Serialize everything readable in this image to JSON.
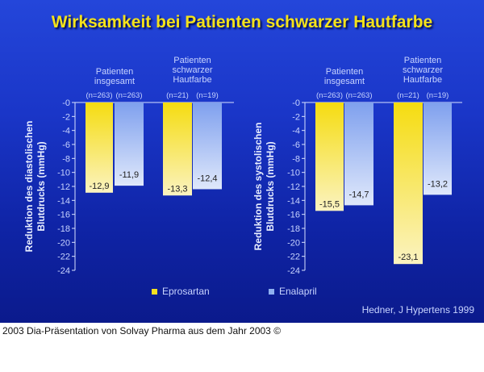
{
  "title": "Wirksamkeit bei Patienten schwarzer Hautfarbe",
  "source": "Hedner, J Hypertens 1999",
  "caption": "2003 Dia-Präsentation von Solvay Pharma aus dem Jahr 2003 ©",
  "colors": {
    "eprosartan": "#f5df20",
    "enalapril": "#8fb0f0",
    "axis": "#c8d4ff"
  },
  "chart_data": [
    {
      "type": "bar",
      "ylabel": "Reduktion des diastolischen Blutdrucks (mmHg)",
      "ylim": [
        -24,
        0
      ],
      "yticks": [
        "-0",
        "-2",
        "-4",
        "-6",
        "-8",
        "-10",
        "-12",
        "-14",
        "-16",
        "-18",
        "-20",
        "-22",
        "-24"
      ],
      "categories": [
        "Patienten insgesamt",
        "Patienten schwarzer Hautfarbe"
      ],
      "n_labels": [
        [
          "(n=263)",
          "(n=263)"
        ],
        [
          "(n=21)",
          "(n=19)"
        ]
      ],
      "series": [
        {
          "name": "Eprosartan",
          "values": [
            -12.9,
            -13.3
          ],
          "labels": [
            "-12,9",
            "-13,3"
          ]
        },
        {
          "name": "Enalapril",
          "values": [
            -11.9,
            -12.4
          ],
          "labels": [
            "-11,9",
            "-12,4"
          ]
        }
      ]
    },
    {
      "type": "bar",
      "ylabel": "Reduktion des systolischen Blutdrucks (mmHg)",
      "ylim": [
        -24,
        0
      ],
      "yticks": [
        "-0",
        "-2",
        "-4",
        "-6",
        "-8",
        "-10",
        "-12",
        "-14",
        "-16",
        "-18",
        "-20",
        "-22",
        "-24"
      ],
      "categories": [
        "Patienten insgesamt",
        "Patienten schwarzer Hautfarbe"
      ],
      "n_labels": [
        [
          "(n=263)",
          "(n=263)"
        ],
        [
          "(n=21)",
          "(n=19)"
        ]
      ],
      "series": [
        {
          "name": "Eprosartan",
          "values": [
            -15.5,
            -23.1
          ],
          "labels": [
            "-15,5",
            "-23,1"
          ]
        },
        {
          "name": "Enalapril",
          "values": [
            -14.7,
            -13.2
          ],
          "labels": [
            "-14,7",
            "-13,2"
          ]
        }
      ]
    }
  ],
  "legend": [
    "Eprosartan",
    "Enalapril"
  ]
}
